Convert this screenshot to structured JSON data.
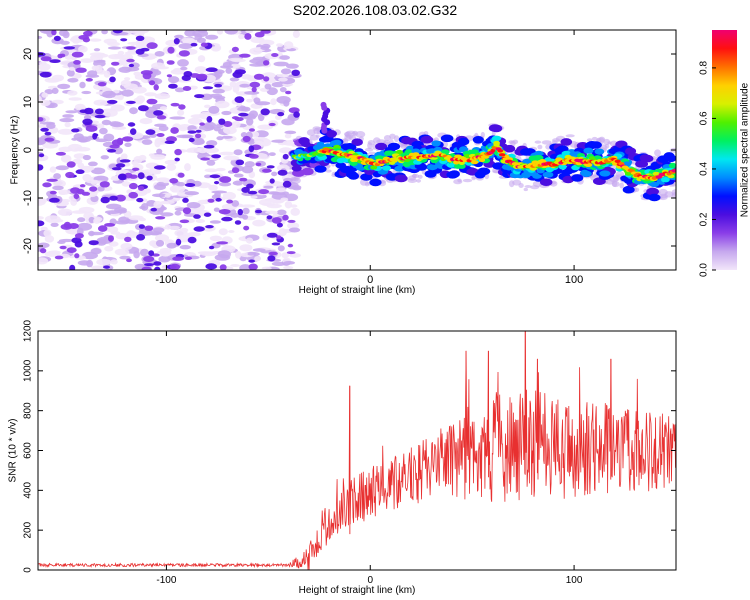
{
  "title": "S202.2026.108.03.02.G32",
  "chart_data": [
    {
      "type": "heatmap",
      "name": "spectrogram",
      "xlabel": "Height of straight line (km)",
      "ylabel": "Frequency (Hz)",
      "xlim": [
        -163,
        150
      ],
      "ylim": [
        -25,
        25
      ],
      "xticks": [
        -100,
        0,
        100
      ],
      "xtick_labels": [
        "-100",
        "0",
        "100"
      ],
      "yticks": [
        -20,
        -10,
        0,
        10,
        20
      ],
      "ytick_labels": [
        "-20",
        "-10",
        "0",
        "10",
        "20"
      ],
      "noise_region_x": [
        -163,
        -36
      ],
      "ridge": {
        "x": [
          -38,
          -30,
          -22,
          -14,
          -6,
          2,
          10,
          18,
          26,
          34,
          42,
          50,
          58,
          62,
          66,
          74,
          82,
          90,
          98,
          106,
          114,
          120,
          126,
          132,
          138,
          144,
          150
        ],
        "y": [
          -1.5,
          -1.0,
          0.0,
          -1.0,
          -1.5,
          -3.0,
          -2.0,
          -1.5,
          -1.5,
          -1.0,
          -2.0,
          -2.0,
          -1.0,
          1.0,
          -2.0,
          -3.5,
          -3.0,
          -3.0,
          -2.0,
          -2.5,
          -2.5,
          -2.0,
          -4.0,
          -5.5,
          -6.0,
          -5.0,
          -4.5
        ]
      },
      "burst": {
        "x": -22,
        "y": 7
      },
      "colorbar": {
        "label": "Normalized spectral amplitude",
        "range": [
          0.0,
          0.95
        ],
        "ticks": [
          0.0,
          0.2,
          0.4,
          0.6,
          0.8
        ],
        "tick_labels": [
          "0.0",
          "0.2",
          "0.4",
          "0.6",
          "0.8"
        ],
        "colors": [
          "#f2e6fa",
          "#c6a8ee",
          "#8a3ee8",
          "#4b0ee0",
          "#0010ff",
          "#008cff",
          "#00e8f0",
          "#00f060",
          "#50f000",
          "#d8f000",
          "#ffd000",
          "#ff7000",
          "#ff1010",
          "#f00070"
        ]
      }
    },
    {
      "type": "line",
      "name": "snr",
      "xlabel": "Height of straight line (km)",
      "ylabel": "SNR (10 * v/v)",
      "xlim": [
        -163,
        150
      ],
      "ylim": [
        0,
        1200
      ],
      "xticks": [
        -100,
        0,
        100
      ],
      "xtick_labels": [
        "-100",
        "0",
        "100"
      ],
      "yticks": [
        0,
        200,
        400,
        600,
        800,
        1000,
        1200
      ],
      "ytick_labels": [
        "0",
        "200",
        "400",
        "600",
        "800",
        "1000",
        "1200"
      ],
      "color": "#e83030",
      "envelope": {
        "x": [
          -163,
          -40,
          -30,
          -25,
          -20,
          -10,
          0,
          10,
          20,
          30,
          40,
          45,
          50,
          60,
          70,
          80,
          90,
          100,
          110,
          120,
          130,
          140,
          150
        ],
        "mean": [
          25,
          25,
          60,
          170,
          250,
          330,
          390,
          430,
          470,
          520,
          560,
          580,
          600,
          620,
          610,
          640,
          620,
          600,
          620,
          600,
          580,
          600,
          610
        ],
        "spread": [
          8,
          8,
          60,
          120,
          100,
          120,
          130,
          140,
          150,
          160,
          190,
          230,
          260,
          280,
          270,
          280,
          270,
          260,
          240,
          230,
          220,
          200,
          180
        ]
      },
      "spikes": [
        {
          "x": -10,
          "y": 925
        },
        {
          "x": 47,
          "y": 1100
        },
        {
          "x": 58,
          "y": 1100
        },
        {
          "x": 76,
          "y": 1200
        },
        {
          "x": 82,
          "y": 1060
        },
        {
          "x": 118,
          "y": 1060
        }
      ]
    }
  ]
}
